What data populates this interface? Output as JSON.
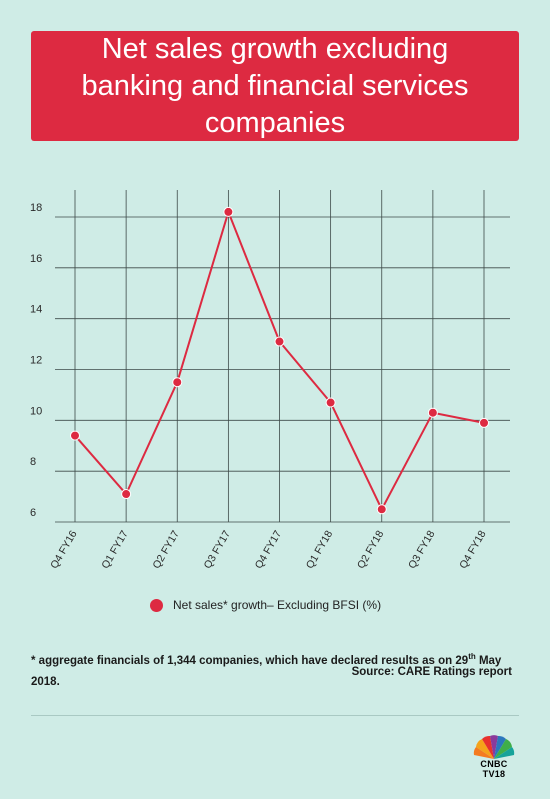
{
  "title": "Net sales growth excluding banking and financial services companies",
  "chart_data": {
    "type": "line",
    "categories": [
      "Q4 FY16",
      "Q1 FY17",
      "Q2 FY17",
      "Q3 FY17",
      "Q4 FY17",
      "Q1 FY18",
      "Q2 FY18",
      "Q3 FY18",
      "Q4 FY18"
    ],
    "series": [
      {
        "name": "Net sales* growth– Excluding BFSI (%)",
        "values": [
          9.4,
          7.1,
          11.5,
          18.2,
          13.1,
          10.7,
          6.5,
          10.3,
          9.9
        ]
      }
    ],
    "yticks": [
      6,
      8,
      10,
      12,
      14,
      16,
      18
    ],
    "ylim": [
      6,
      18.5
    ],
    "grid": true,
    "legend_position": "bottom",
    "line_color": "#dd2a41"
  },
  "legend_label": "Net sales* growth– Excluding BFSI (%)",
  "footnote": {
    "text_before": "* aggregate  financials of 1,344 companies, which have declared results as on 29",
    "superscript": "th",
    "text_after": " May 2018."
  },
  "source": "Source: CARE Ratings report",
  "logo": {
    "line1": "CNBC",
    "line2": "TV18",
    "icon": "peacock-icon"
  }
}
